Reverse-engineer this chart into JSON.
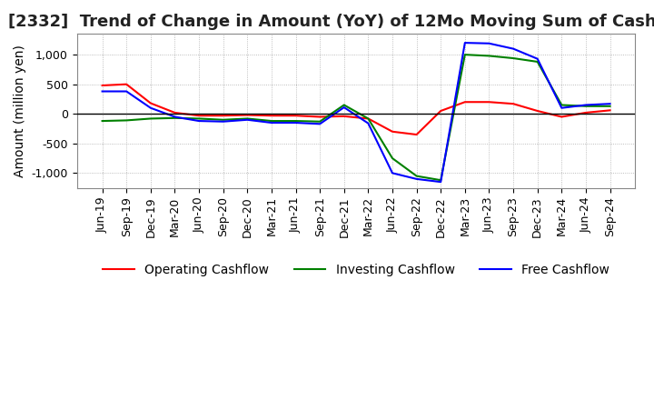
{
  "title": "[2332]  Trend of Change in Amount (YoY) of 12Mo Moving Sum of Cashflows",
  "ylabel": "Amount (million yen)",
  "ylim": [
    -1250,
    1350
  ],
  "yticks": [
    -1000,
    -500,
    0,
    500,
    1000
  ],
  "background_color": "#ffffff",
  "plot_background": "#ffffff",
  "grid_color": "#aaaaaa",
  "title_fontsize": 13,
  "label_fontsize": 10,
  "tick_fontsize": 9,
  "x_labels": [
    "Jun-19",
    "Sep-19",
    "Dec-19",
    "Mar-20",
    "Jun-20",
    "Sep-20",
    "Dec-20",
    "Mar-21",
    "Jun-21",
    "Sep-21",
    "Dec-21",
    "Mar-22",
    "Jun-22",
    "Sep-22",
    "Dec-22",
    "Mar-23",
    "Jun-23",
    "Sep-23",
    "Dec-23",
    "Mar-24",
    "Jun-24",
    "Sep-24"
  ],
  "operating_cashflow": [
    480,
    500,
    180,
    20,
    -30,
    -30,
    -20,
    -30,
    -30,
    -50,
    -40,
    -80,
    -300,
    -350,
    50,
    200,
    200,
    170,
    50,
    -50,
    20,
    60
  ],
  "investing_cashflow": [
    -120,
    -110,
    -80,
    -70,
    -80,
    -100,
    -80,
    -120,
    -120,
    -130,
    150,
    -80,
    -750,
    -1050,
    -1120,
    1000,
    980,
    940,
    880,
    150,
    130,
    130
  ],
  "free_cashflow": [
    380,
    380,
    100,
    -50,
    -120,
    -130,
    -100,
    -150,
    -150,
    -170,
    110,
    -160,
    -1000,
    -1100,
    -1150,
    1200,
    1190,
    1100,
    930,
    100,
    150,
    170
  ],
  "operating_color": "#ff0000",
  "investing_color": "#008000",
  "free_color": "#0000ff",
  "line_width": 1.5
}
